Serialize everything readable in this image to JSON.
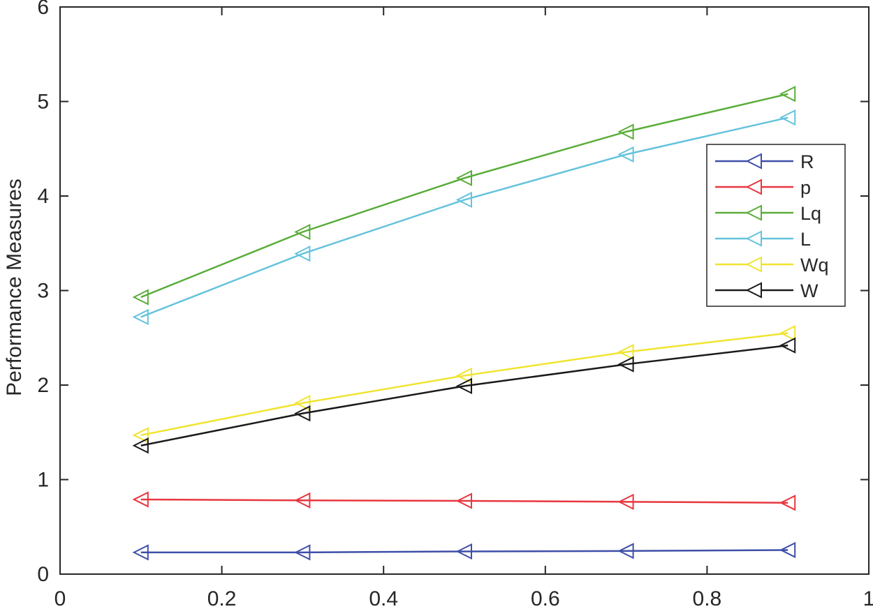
{
  "chart_data": {
    "type": "line",
    "title": "",
    "xlabel": "",
    "ylabel": "Performance Measures",
    "xlim": [
      0,
      1
    ],
    "ylim": [
      0,
      6
    ],
    "x_ticks": [
      "0",
      "0.2",
      "0.4",
      "0.6",
      "0.8",
      "1"
    ],
    "y_ticks": [
      "0",
      "1",
      "2",
      "3",
      "4",
      "5",
      "6"
    ],
    "x_tick_values": [
      0,
      0.2,
      0.4,
      0.6,
      0.8,
      1
    ],
    "y_tick_values": [
      0,
      1,
      2,
      3,
      4,
      5,
      6
    ],
    "grid": false,
    "legend_position": "right",
    "marker": "triangle-left",
    "x": [
      0.1,
      0.3,
      0.5,
      0.7,
      0.9
    ],
    "series": [
      {
        "name": "R",
        "color": "#3f4fa8",
        "values": [
          0.23,
          0.23,
          0.24,
          0.245,
          0.255
        ]
      },
      {
        "name": "p",
        "color": "#e8373f",
        "values": [
          0.79,
          0.78,
          0.775,
          0.765,
          0.755
        ]
      },
      {
        "name": "Lq",
        "color": "#5aad3a",
        "values": [
          2.93,
          3.62,
          4.19,
          4.68,
          5.08
        ]
      },
      {
        "name": "L",
        "color": "#65c3dc",
        "values": [
          2.72,
          3.39,
          3.96,
          4.44,
          4.83
        ]
      },
      {
        "name": "Wq",
        "color": "#f0e430",
        "values": [
          1.47,
          1.81,
          2.1,
          2.35,
          2.55
        ]
      },
      {
        "name": "W",
        "color": "#1a1a1a",
        "values": [
          1.36,
          1.7,
          1.99,
          2.22,
          2.42
        ]
      }
    ]
  }
}
